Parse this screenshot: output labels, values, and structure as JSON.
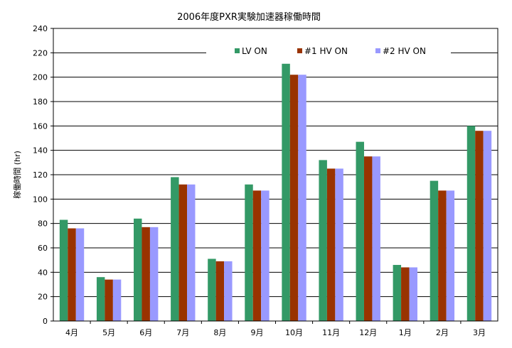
{
  "chart_data": {
    "type": "bar",
    "title": "2006年度PXR実験加速器稼働時間",
    "ylabel": "稼働時間 (hr)",
    "xlabel": "",
    "ylim": [
      0,
      240
    ],
    "yticks": [
      0,
      20,
      40,
      60,
      80,
      100,
      120,
      140,
      160,
      180,
      200,
      220,
      240
    ],
    "grid": true,
    "legend_position": "top-center",
    "categories": [
      "4月",
      "5月",
      "6月",
      "7月",
      "8月",
      "9月",
      "10月",
      "11月",
      "12月",
      "1月",
      "2月",
      "3月"
    ],
    "series": [
      {
        "name": "LV ON",
        "color": "#339966",
        "values": [
          83,
          36,
          84,
          118,
          51,
          112,
          211,
          132,
          147,
          46,
          115,
          160
        ]
      },
      {
        "name": "#1  HV ON",
        "color": "#993300",
        "values": [
          76,
          34,
          77,
          112,
          49,
          107,
          202,
          125,
          135,
          44,
          107,
          156
        ]
      },
      {
        "name": "#2  HV ON",
        "color": "#9999ff",
        "values": [
          76,
          34,
          77,
          112,
          49,
          107,
          202,
          125,
          135,
          44,
          107,
          156
        ]
      }
    ]
  }
}
